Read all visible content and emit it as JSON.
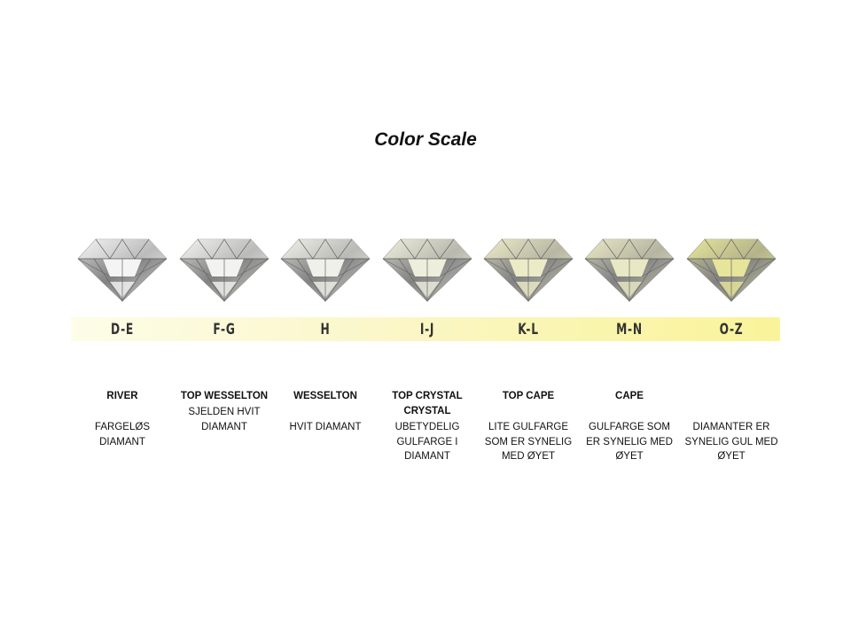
{
  "title": "Color Scale",
  "columns": [
    {
      "grade": "D-E",
      "heading": "RIVER",
      "description": "FARGELØS\nDIAMANT",
      "tint": "#f4f4f4"
    },
    {
      "grade": "F-G",
      "heading": "TOP WESSELTON",
      "description": "SJELDEN HVIT\nDIAMANT",
      "tint": "#f2f2ee"
    },
    {
      "grade": "H",
      "heading": "WESSELTON",
      "description": "HVIT DIAMANT",
      "tint": "#f0f0ea"
    },
    {
      "grade": "I-J",
      "heading": "TOP CRYSTAL\nCRYSTAL",
      "description": "UBETYDELIG\nGULFARGE I\nDIAMANT",
      "tint": "#eeeedd"
    },
    {
      "grade": "K-L",
      "heading": "TOP CAPE",
      "description": "LITE GULFARGE\nSOM ER SYNELIG\nMED ØYET",
      "tint": "#ecebc8"
    },
    {
      "grade": "M-N",
      "heading": "CAPE",
      "description": "GULFARGE SOM\nER SYNELIG MED\nØYET",
      "tint": "#e9e8c4"
    },
    {
      "grade": "O-Z",
      "heading": "",
      "description": "DIAMANTER ER\nSYNELIG GUL MED\nØYET",
      "tint": "#e6e59a"
    }
  ]
}
